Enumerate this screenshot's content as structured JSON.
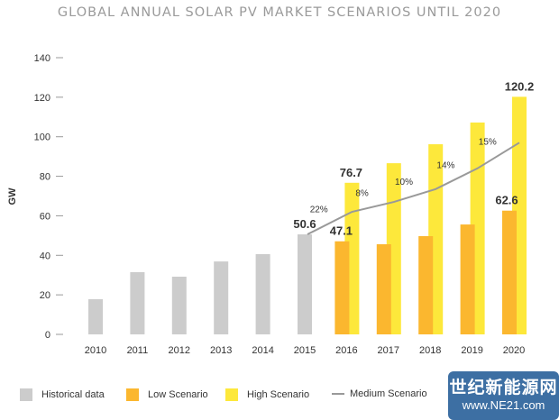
{
  "chart_data": {
    "type": "bar",
    "title": "GLOBAL ANNUAL SOLAR PV MARKET SCENARIOS UNTIL 2020",
    "ylabel": "GW",
    "xlabel": "",
    "ylim": [
      0,
      140
    ],
    "yticks": [
      0,
      20,
      40,
      60,
      80,
      100,
      120,
      140
    ],
    "categories": [
      "2010",
      "2011",
      "2012",
      "2013",
      "2014",
      "2015",
      "2016",
      "2017",
      "2018",
      "2019",
      "2020"
    ],
    "series": [
      {
        "name": "Historical data",
        "color": "#cccccc",
        "values": [
          17.8,
          31.5,
          29.2,
          36.9,
          40.6,
          50.6,
          null,
          null,
          null,
          null,
          null
        ]
      },
      {
        "name": "Low Scenario",
        "color": "#fbb72f",
        "values": [
          null,
          null,
          null,
          null,
          null,
          null,
          47.1,
          45.6,
          49.7,
          55.6,
          62.6
        ]
      },
      {
        "name": "High Scenario",
        "color": "#fde83b",
        "values": [
          null,
          null,
          null,
          null,
          null,
          null,
          76.7,
          86.6,
          96.2,
          107.2,
          120.2
        ]
      },
      {
        "name": "Medium Scenario",
        "color": "#999999",
        "type": "line",
        "values": [
          null,
          null,
          null,
          null,
          null,
          50.6,
          62,
          67,
          73.5,
          84,
          97
        ]
      }
    ],
    "data_labels": {
      "2015": "50.6",
      "2016_low": "47.1",
      "2016_high": "76.7",
      "2020_low": "62.6",
      "2020_high": "120.2"
    },
    "growth_labels": [
      "22%",
      "8%",
      "10%",
      "14%",
      "15%"
    ],
    "grid": false,
    "legend_position": "bottom"
  },
  "watermark": {
    "line1": "世纪新能源网",
    "line2": "www.NE21.com",
    "color": "#3d6fa3"
  }
}
